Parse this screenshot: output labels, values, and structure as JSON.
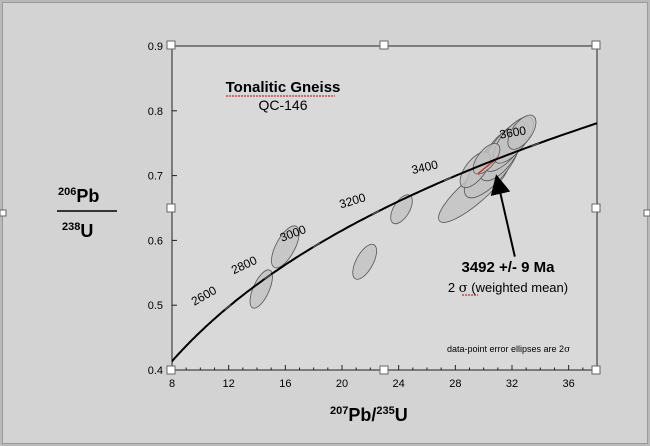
{
  "chart_data": {
    "type": "scatter",
    "subtype": "concordia diagram with error ellipses",
    "title": "Tonalitic Gneiss",
    "subtitle": "QC-146",
    "xlabel": {
      "sup": "207",
      "elem": "Pb",
      "slash": "/",
      "sup2": "235",
      "elem2": "U"
    },
    "ylabel": {
      "top_sup": "206",
      "top_elem": "Pb",
      "bottom_sup": "238",
      "bottom_elem": "U"
    },
    "xlim": [
      8,
      38
    ],
    "ylim": [
      0.4,
      0.9
    ],
    "x_ticks": [
      8,
      12,
      16,
      20,
      24,
      28,
      32,
      36
    ],
    "y_ticks": [
      0.4,
      0.5,
      0.6,
      0.7,
      0.8,
      0.9
    ],
    "x_tick_labels": [
      "8",
      "12",
      "16",
      "20",
      "24",
      "28",
      "32",
      "36"
    ],
    "y_tick_labels": [
      "0.4",
      "0.5",
      "0.6",
      "0.7",
      "0.8",
      "0.9"
    ],
    "concordia_age_labels": [
      {
        "label": "2600",
        "age_ma": 2600
      },
      {
        "label": "2800",
        "age_ma": 2800
      },
      {
        "label": "3000",
        "age_ma": 3000
      },
      {
        "label": "3200",
        "age_ma": 3200
      },
      {
        "label": "3400",
        "age_ma": 3400
      },
      {
        "label": "3600",
        "age_ma": 3600
      }
    ],
    "ellipses": [
      {
        "x": 14.3,
        "y": 0.525,
        "rx": 1.0,
        "ry": 0.032
      },
      {
        "x": 16.0,
        "y": 0.59,
        "rx": 1.3,
        "ry": 0.036
      },
      {
        "x": 21.6,
        "y": 0.567,
        "rx": 1.1,
        "ry": 0.03
      },
      {
        "x": 24.2,
        "y": 0.648,
        "rx": 1.0,
        "ry": 0.025
      },
      {
        "x": 29.3,
        "y": 0.676,
        "rx": 3.2,
        "ry": 0.042
      },
      {
        "x": 30.6,
        "y": 0.715,
        "rx": 2.8,
        "ry": 0.052
      },
      {
        "x": 31.2,
        "y": 0.733,
        "rx": 2.2,
        "ry": 0.047
      },
      {
        "x": 31.6,
        "y": 0.745,
        "rx": 2.2,
        "ry": 0.04
      },
      {
        "x": 32.1,
        "y": 0.755,
        "rx": 2.0,
        "ry": 0.038
      },
      {
        "x": 32.7,
        "y": 0.767,
        "rx": 1.4,
        "ry": 0.03
      },
      {
        "x": 29.4,
        "y": 0.709,
        "rx": 1.5,
        "ry": 0.03
      },
      {
        "x": 30.2,
        "y": 0.726,
        "rx": 1.3,
        "ry": 0.025
      }
    ],
    "annotation_age": "3492 +/- 9 Ma",
    "annotation_sigma_prefix": "2",
    "annotation_sigma_symbol": "σ",
    "annotation_sigma_suffix": "(weighted mean)",
    "footnote_text": "data-point error ellipses are 2",
    "footnote_symbol": "σ",
    "arrow_from": {
      "x": 32.2,
      "y": 0.575
    },
    "arrow_to": {
      "x": 31.0,
      "y": 0.69
    },
    "grid": false,
    "colors": {
      "plot_bg": "#d9d9d9",
      "ellipse_fill": "#c2c2c2",
      "ellipse_stroke": "#555555",
      "curve": "#000000",
      "highlight": "#c0392b"
    }
  }
}
